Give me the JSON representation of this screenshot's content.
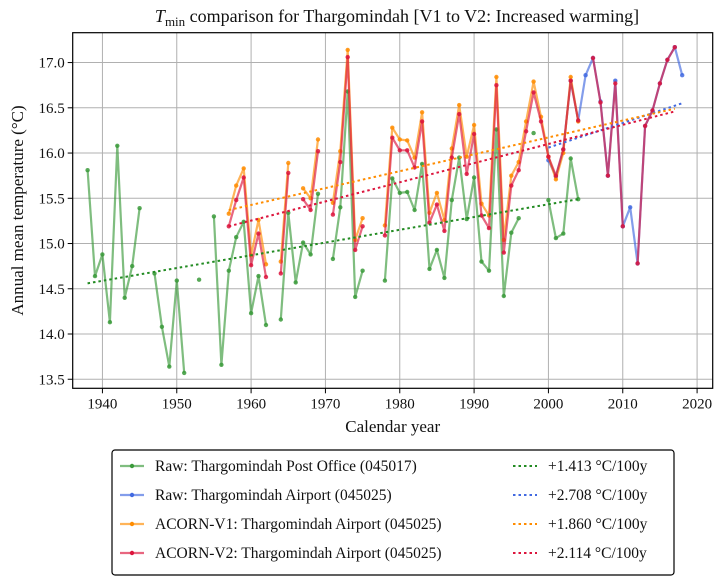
{
  "chart_data": {
    "type": "line",
    "title": {
      "symbol": "T",
      "subscript": "min",
      "rest": " comparison for Thargomindah  [V1 to V2: Increased warming]"
    },
    "xlabel": "Calendar year",
    "ylabel": "Annual mean temperature (°C)",
    "xlim": [
      1936,
      2022.1
    ],
    "ylim": [
      13.4,
      17.33
    ],
    "xticks": [
      1940,
      1950,
      1960,
      1970,
      1980,
      1990,
      2000,
      2010,
      2020
    ],
    "yticks": [
      13.5,
      14.0,
      14.5,
      15.0,
      15.5,
      16.0,
      16.5,
      17.0
    ],
    "ytick_labels": [
      "13.5",
      "14.0",
      "14.5",
      "15.0",
      "15.5",
      "16.0",
      "16.5",
      "17.0"
    ],
    "grid": true,
    "legend_position": "below-center",
    "series": [
      {
        "name": "Raw: Thargomindah Post Office (045017)",
        "color": "#3a9a3a",
        "points": [
          [
            1938,
            15.81
          ],
          [
            1939,
            14.64
          ],
          [
            1940,
            14.88
          ],
          [
            1941,
            14.13
          ],
          [
            1942,
            16.08
          ],
          [
            1943,
            14.4
          ],
          [
            1944,
            14.75
          ],
          [
            1945,
            15.39
          ],
          null,
          [
            1947,
            14.67
          ],
          [
            1948,
            14.08
          ],
          [
            1949,
            13.64
          ],
          [
            1950,
            14.59
          ],
          [
            1951,
            13.57
          ],
          null,
          [
            1953,
            14.6
          ],
          null,
          [
            1955,
            15.3
          ],
          [
            1956,
            13.66
          ],
          [
            1957,
            14.7
          ],
          [
            1958,
            15.07
          ],
          [
            1959,
            15.24
          ],
          [
            1960,
            14.23
          ],
          [
            1961,
            14.64
          ],
          [
            1962,
            14.1
          ],
          null,
          [
            1964,
            14.16
          ],
          [
            1965,
            15.34
          ],
          [
            1966,
            14.57
          ],
          [
            1967,
            15.01
          ],
          [
            1968,
            14.88
          ],
          [
            1969,
            15.55
          ],
          null,
          [
            1971,
            14.83
          ],
          [
            1972,
            15.4
          ],
          [
            1973,
            16.68
          ],
          [
            1974,
            14.41
          ],
          [
            1975,
            14.7
          ],
          null,
          [
            1978,
            14.59
          ],
          [
            1979,
            15.72
          ],
          [
            1980,
            15.56
          ],
          [
            1981,
            15.57
          ],
          [
            1982,
            15.37
          ],
          [
            1983,
            15.88
          ],
          [
            1984,
            14.72
          ],
          [
            1985,
            14.93
          ],
          [
            1986,
            14.62
          ],
          [
            1987,
            15.48
          ],
          [
            1988,
            15.95
          ],
          [
            1989,
            15.27
          ],
          [
            1990,
            15.73
          ],
          [
            1991,
            14.8
          ],
          [
            1992,
            14.7
          ],
          [
            1993,
            16.26
          ],
          [
            1994,
            14.42
          ],
          [
            1995,
            15.12
          ],
          [
            1996,
            15.28
          ],
          null,
          [
            1998,
            16.22
          ],
          null,
          [
            2000,
            15.48
          ],
          [
            2001,
            15.06
          ],
          [
            2002,
            15.11
          ],
          [
            2003,
            15.94
          ],
          [
            2004,
            15.49
          ]
        ]
      },
      {
        "name": "Raw: Thargomindah Airport (045025)",
        "color": "#4169e1",
        "points": [
          [
            2000,
            15.92
          ],
          [
            2001,
            15.74
          ],
          [
            2002,
            16.04
          ],
          [
            2003,
            16.8
          ],
          [
            2004,
            16.36
          ],
          [
            2005,
            16.86
          ],
          [
            2006,
            17.05
          ],
          [
            2007,
            16.57
          ],
          [
            2008,
            15.75
          ],
          [
            2009,
            16.8
          ],
          [
            2010,
            15.19
          ],
          [
            2011,
            15.4
          ],
          [
            2012,
            14.78
          ],
          [
            2013,
            16.3
          ],
          [
            2014,
            16.47
          ],
          [
            2015,
            16.77
          ],
          [
            2016,
            17.03
          ],
          [
            2017,
            17.17
          ],
          [
            2018,
            16.86
          ]
        ]
      },
      {
        "name": "ACORN-V1: Thargomindah Airport (045025)",
        "color": "#ff8c00",
        "points": [
          [
            1957,
            15.33
          ],
          [
            1958,
            15.64
          ],
          [
            1959,
            15.83
          ],
          [
            1960,
            14.87
          ],
          [
            1961,
            15.26
          ],
          [
            1962,
            14.77
          ],
          null,
          [
            1964,
            14.8
          ],
          [
            1965,
            15.89
          ],
          null,
          [
            1967,
            15.61
          ],
          [
            1968,
            15.5
          ],
          [
            1969,
            16.15
          ],
          null,
          [
            1971,
            15.45
          ],
          [
            1972,
            16.02
          ],
          [
            1973,
            17.14
          ],
          [
            1974,
            15.04
          ],
          [
            1975,
            15.28
          ],
          null,
          [
            1978,
            15.2
          ],
          [
            1979,
            16.28
          ],
          [
            1980,
            16.15
          ],
          [
            1981,
            16.14
          ],
          [
            1982,
            15.95
          ],
          [
            1983,
            16.45
          ],
          [
            1984,
            15.34
          ],
          [
            1985,
            15.56
          ],
          [
            1986,
            15.26
          ],
          [
            1987,
            16.05
          ],
          [
            1988,
            16.53
          ],
          [
            1989,
            15.96
          ],
          [
            1990,
            16.31
          ],
          [
            1991,
            15.44
          ],
          [
            1992,
            15.31
          ],
          [
            1993,
            16.84
          ],
          [
            1994,
            15.04
          ],
          [
            1995,
            15.75
          ],
          [
            1996,
            15.9
          ],
          [
            1997,
            16.35
          ],
          [
            1998,
            16.79
          ],
          [
            1999,
            16.4
          ],
          [
            2000,
            15.96
          ],
          [
            2001,
            15.71
          ],
          [
            2002,
            16.0
          ],
          [
            2003,
            16.84
          ],
          [
            2004,
            16.35
          ]
        ]
      },
      {
        "name": "ACORN-V2: Thargomindah Airport (045025)",
        "color": "#dc143c",
        "points": [
          [
            1957,
            15.19
          ],
          [
            1958,
            15.48
          ],
          [
            1959,
            15.73
          ],
          [
            1960,
            14.76
          ],
          [
            1961,
            15.11
          ],
          [
            1962,
            14.63
          ],
          null,
          [
            1964,
            14.67
          ],
          [
            1965,
            15.78
          ],
          null,
          [
            1967,
            15.49
          ],
          [
            1968,
            15.37
          ],
          [
            1969,
            16.02
          ],
          null,
          [
            1971,
            15.32
          ],
          [
            1972,
            15.9
          ],
          [
            1973,
            17.06
          ],
          [
            1974,
            14.93
          ],
          [
            1975,
            15.19
          ],
          null,
          [
            1978,
            15.09
          ],
          [
            1979,
            16.17
          ],
          [
            1980,
            16.03
          ],
          [
            1981,
            16.03
          ],
          [
            1982,
            15.84
          ],
          [
            1983,
            16.35
          ],
          [
            1984,
            15.23
          ],
          [
            1985,
            15.43
          ],
          [
            1986,
            15.14
          ],
          [
            1987,
            15.95
          ],
          [
            1988,
            16.43
          ],
          [
            1989,
            15.77
          ],
          [
            1990,
            16.21
          ],
          [
            1991,
            15.31
          ],
          [
            1992,
            15.17
          ],
          [
            1993,
            16.75
          ],
          [
            1994,
            14.9
          ],
          [
            1995,
            15.64
          ],
          [
            1996,
            15.81
          ],
          [
            1997,
            16.24
          ],
          [
            1998,
            16.67
          ],
          [
            1999,
            16.35
          ],
          [
            2000,
            15.96
          ],
          [
            2001,
            15.75
          ],
          [
            2002,
            16.04
          ],
          [
            2003,
            16.8
          ],
          [
            2004,
            16.36
          ],
          null,
          [
            2006,
            17.05
          ],
          [
            2007,
            16.56
          ],
          [
            2008,
            15.75
          ],
          [
            2009,
            16.77
          ],
          [
            2010,
            15.19
          ],
          null,
          [
            2012,
            14.78
          ],
          [
            2013,
            16.3
          ],
          [
            2014,
            16.47
          ],
          [
            2015,
            16.77
          ],
          [
            2016,
            17.03
          ],
          [
            2017,
            17.17
          ]
        ]
      }
    ],
    "trends": [
      {
        "label": "+1.413 °C/100y",
        "color": "#228b22",
        "x": [
          1938,
          2004
        ],
        "y": [
          14.56,
          15.49
        ]
      },
      {
        "label": "+2.708 °C/100y",
        "color": "#4169e1",
        "x": [
          2000,
          2018
        ],
        "y": [
          16.06,
          16.55
        ]
      },
      {
        "label": "+1.860 °C/100y",
        "color": "#ff8c00",
        "x": [
          1957,
          2017
        ],
        "y": [
          15.37,
          16.49
        ]
      },
      {
        "label": "+2.114 °C/100y",
        "color": "#dc143c",
        "x": [
          1957,
          2017
        ],
        "y": [
          15.19,
          16.46
        ]
      }
    ]
  }
}
